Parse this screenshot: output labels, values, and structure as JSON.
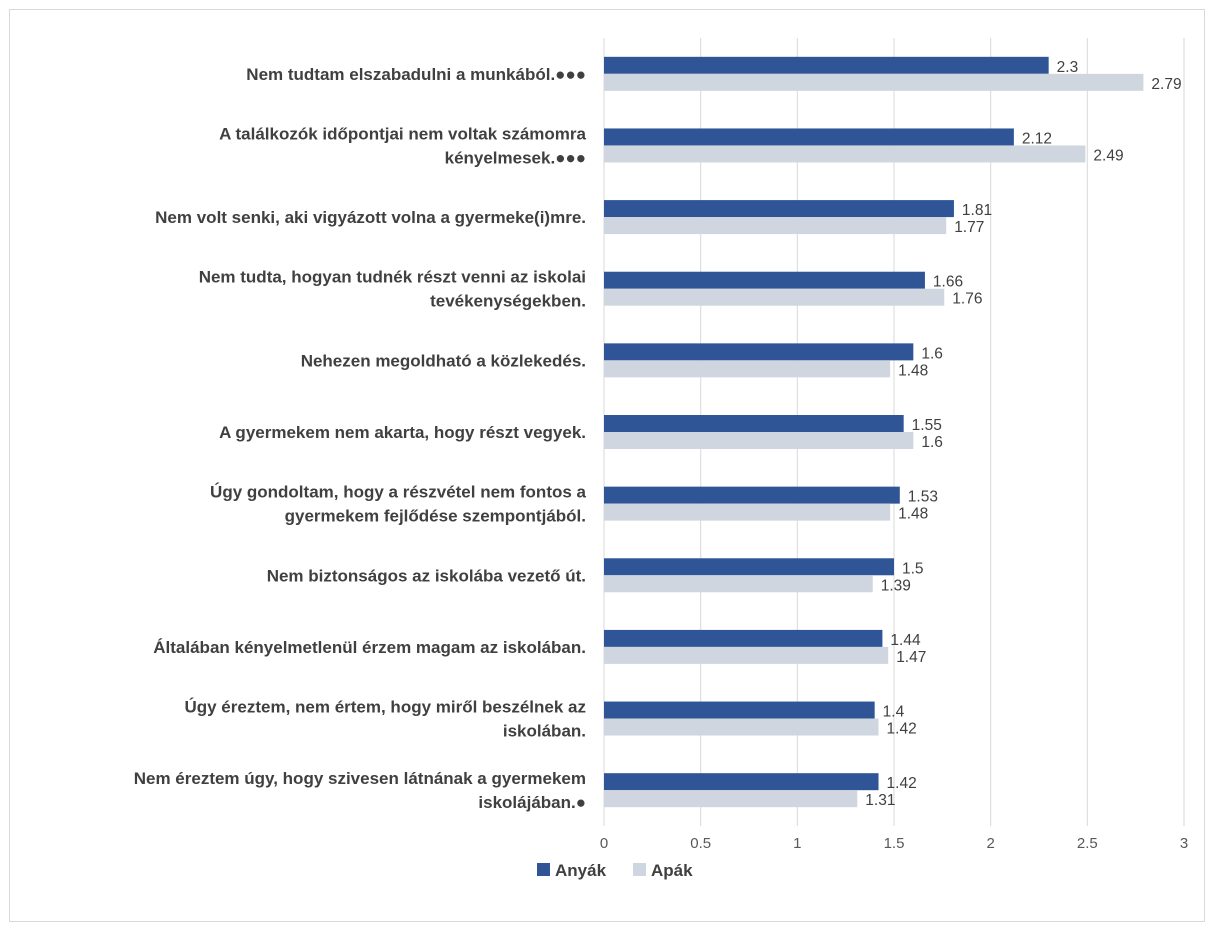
{
  "chart_data": {
    "type": "bar",
    "orientation": "horizontal",
    "categories": [
      [
        "Nem tudtam elszabadulni a munkából.●●●"
      ],
      [
        "A találkozók időpontjai nem voltak számomra",
        "kényelmesek.●●●"
      ],
      [
        "Nem volt senki, aki vigyázott volna a gyermeke(i)mre."
      ],
      [
        "Nem tudta, hogyan tudnék részt venni az iskolai",
        "tevékenységekben."
      ],
      [
        "Nehezen megoldható a közlekedés."
      ],
      [
        "A gyermekem nem akarta, hogy részt vegyek."
      ],
      [
        "Úgy gondoltam, hogy a részvétel nem fontos a",
        "gyermekem fejlődése szempontjából."
      ],
      [
        "Nem biztonságos az iskolába vezető út."
      ],
      [
        "Általában kényelmetlenül érzem magam az iskolában."
      ],
      [
        "Úgy éreztem, nem értem, hogy miről beszélnek az",
        "iskolában."
      ],
      [
        "Nem éreztem úgy, hogy szivesen látnának a gyermekem",
        "iskolájában.●"
      ]
    ],
    "series": [
      {
        "name": "Anyák",
        "color": "#2f5597",
        "values": [
          2.3,
          2.12,
          1.81,
          1.66,
          1.6,
          1.55,
          1.53,
          1.5,
          1.44,
          1.4,
          1.42
        ],
        "labels": [
          "2.3",
          "2.12",
          "1.81",
          "1.66",
          "1.6",
          "1.55",
          "1.53",
          "1.5",
          "1.44",
          "1.4",
          "1.42"
        ]
      },
      {
        "name": "Apák",
        "color": "#d0d6e0",
        "values": [
          2.79,
          2.49,
          1.77,
          1.76,
          1.48,
          1.6,
          1.48,
          1.39,
          1.47,
          1.42,
          1.31
        ],
        "labels": [
          "2.79",
          "2.49",
          "1.77",
          "1.76",
          "1.48",
          "1.6",
          "1.48",
          "1.39",
          "1.47",
          "1.42",
          "1.31"
        ]
      }
    ],
    "xlim": [
      0,
      3
    ],
    "xticks": [
      "0",
      "0.5",
      "1",
      "1.5",
      "2",
      "2.5",
      "3"
    ],
    "grid": "vertical",
    "legend": "bottom-center",
    "title": "",
    "xlabel": "",
    "ylabel": ""
  }
}
